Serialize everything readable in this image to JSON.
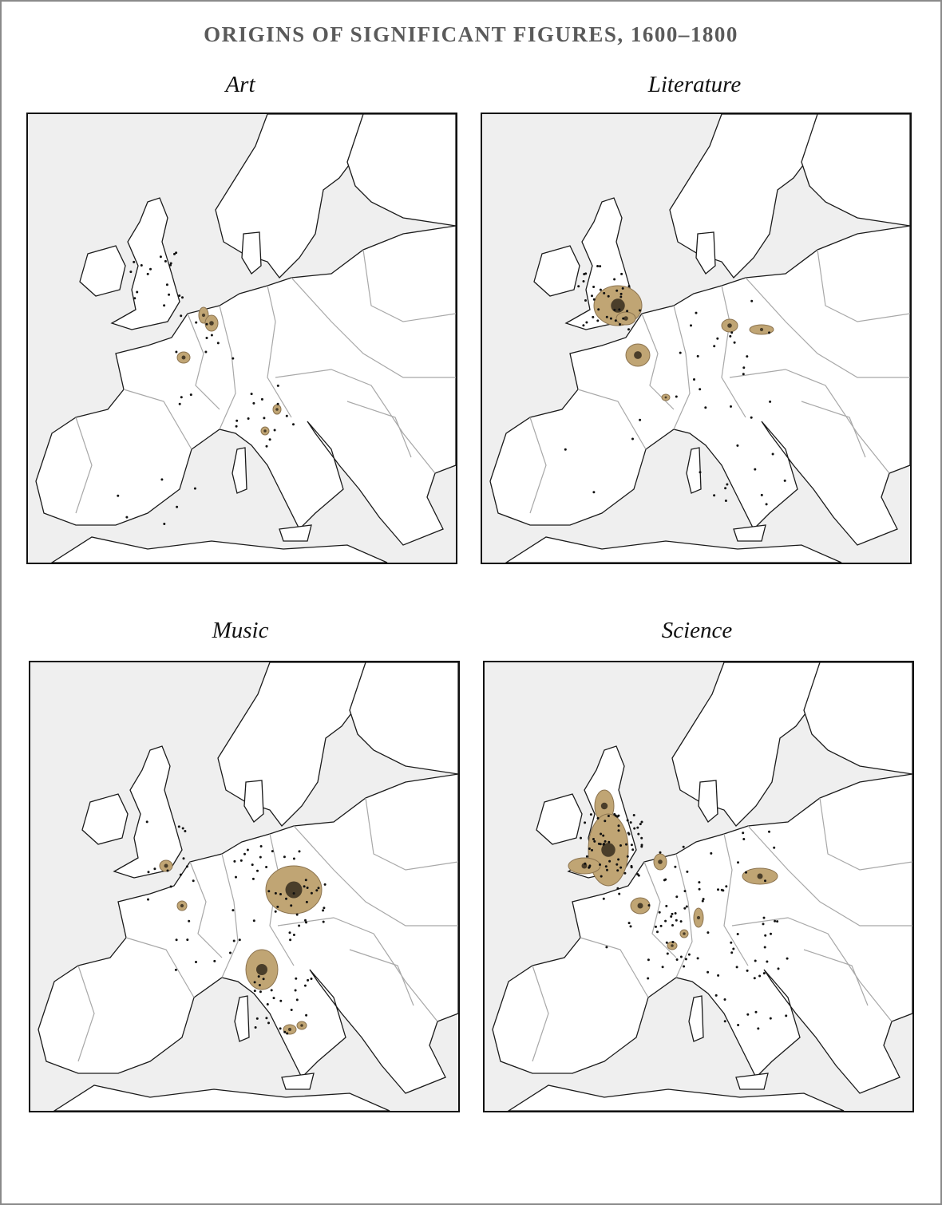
{
  "title": "ORIGINS OF SIGNIFICANT FIGURES, 1600–1800",
  "panels": [
    {
      "label": "Art"
    },
    {
      "label": "Literature"
    },
    {
      "label": "Music"
    },
    {
      "label": "Science"
    }
  ]
}
